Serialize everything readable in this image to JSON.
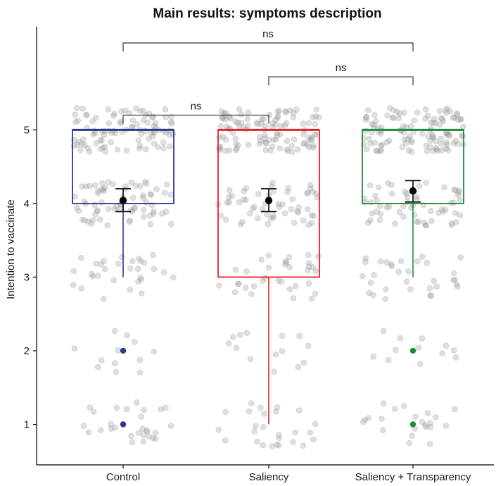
{
  "chart_data": {
    "type": "box",
    "title": "Main results: symptoms description",
    "xlabel": "",
    "ylabel": "Intention to vaccinate",
    "categories": [
      "Control",
      "Saliency",
      "Saliency + Transparency"
    ],
    "y_ticks": [
      1,
      2,
      3,
      4,
      5
    ],
    "ylim": [
      0.45,
      6.4
    ],
    "grid": false,
    "legend": "none",
    "boxes": [
      {
        "category": "Control",
        "color": "#2b3990",
        "q1": 4,
        "median": 5,
        "q3": 5,
        "whisker_low": 3,
        "whisker_high": 5,
        "outliers": [
          2,
          1
        ],
        "mean": 4.04,
        "ci_low": 3.89,
        "ci_high": 4.2
      },
      {
        "category": "Saliency",
        "color": "#e8232a",
        "q1": 3,
        "median": 5,
        "q3": 5,
        "whisker_low": 1,
        "whisker_high": 5,
        "outliers": [],
        "mean": 4.04,
        "ci_low": 3.89,
        "ci_high": 4.2
      },
      {
        "category": "Saliency + Transparency",
        "color": "#1f8a3a",
        "q1": 4,
        "median": 5,
        "q3": 5,
        "whisker_low": 3,
        "whisker_high": 5,
        "outliers": [
          2,
          1
        ],
        "mean": 4.17,
        "ci_low": 4.02,
        "ci_high": 4.31
      }
    ],
    "significance": [
      {
        "from": "Control",
        "to": "Saliency",
        "label": "ns",
        "y": 5.2
      },
      {
        "from": "Saliency",
        "to": "Saliency + Transparency",
        "label": "ns",
        "y": 5.72
      },
      {
        "from": "Control",
        "to": "Saliency + Transparency",
        "label": "ns",
        "y": 6.18
      }
    ],
    "jitter": {
      "color": "#9a9a9a",
      "counts": {
        "Control": {
          "1": 28,
          "2": 12,
          "3": 30,
          "4": 70,
          "5": 95
        },
        "Saliency": {
          "1": 26,
          "2": 14,
          "3": 34,
          "4": 56,
          "5": 110
        },
        "Saliency + Transparency": {
          "1": 22,
          "2": 12,
          "3": 32,
          "4": 60,
          "5": 115
        }
      }
    }
  }
}
